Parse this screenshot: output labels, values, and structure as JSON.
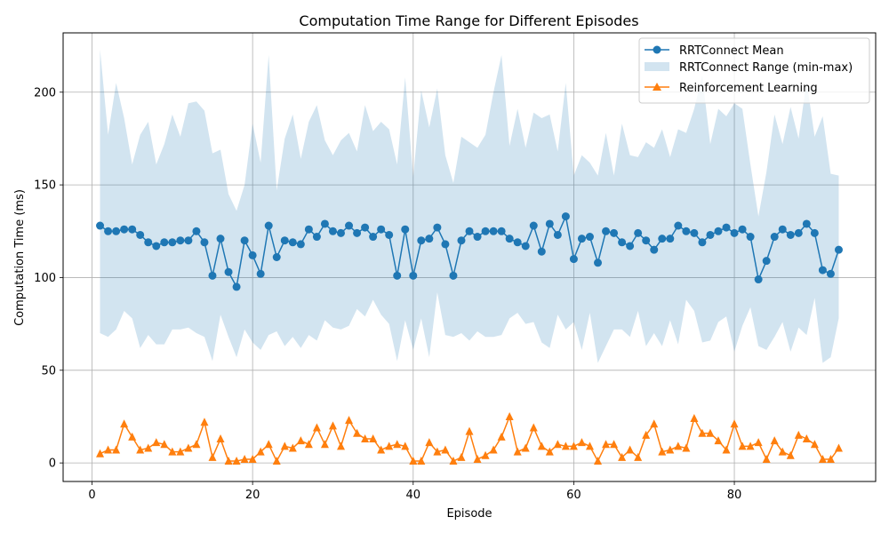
{
  "chart_data": {
    "type": "line",
    "title": "Computation Time Range for Different Episodes",
    "xlabel": "Episode",
    "ylabel": "Computation Time (ms)",
    "xlim": [
      -3.6,
      97.6
    ],
    "ylim": [
      -10,
      232
    ],
    "xticks": [
      0,
      20,
      40,
      60,
      80
    ],
    "yticks": [
      0,
      50,
      100,
      150,
      200
    ],
    "grid": true,
    "legend_position": "top-right",
    "x": [
      1,
      2,
      3,
      4,
      5,
      6,
      7,
      8,
      9,
      10,
      11,
      12,
      13,
      14,
      15,
      16,
      17,
      18,
      19,
      20,
      21,
      22,
      23,
      24,
      25,
      26,
      27,
      28,
      29,
      30,
      31,
      32,
      33,
      34,
      35,
      36,
      37,
      38,
      39,
      40,
      41,
      42,
      43,
      44,
      45,
      46,
      47,
      48,
      49,
      50,
      51,
      52,
      53,
      54,
      55,
      56,
      57,
      58,
      59,
      60,
      61,
      62,
      63,
      64,
      65,
      66,
      67,
      68,
      69,
      70,
      71,
      72,
      73,
      74,
      75,
      76,
      77,
      78,
      79,
      80,
      81,
      82,
      83,
      84,
      85,
      86,
      87,
      88,
      89,
      90,
      91,
      92,
      93
    ],
    "series": [
      {
        "name": "RRTConnect Mean",
        "kind": "line",
        "marker": "circle",
        "color": "#1f77b4",
        "values": [
          128,
          125,
          125,
          126,
          126,
          123,
          119,
          117,
          119,
          119,
          120,
          120,
          125,
          119,
          101,
          121,
          103,
          95,
          120,
          112,
          102,
          128,
          111,
          120,
          119,
          118,
          126,
          122,
          129,
          125,
          124,
          128,
          124,
          127,
          122,
          126,
          123,
          101,
          126,
          101,
          120,
          121,
          127,
          118,
          101,
          120,
          125,
          122,
          125,
          125,
          125,
          121,
          119,
          117,
          128,
          114,
          129,
          123,
          133,
          110,
          121,
          122,
          108,
          125,
          124,
          119,
          117,
          124,
          120,
          115,
          121,
          121,
          128,
          125,
          124,
          119,
          123,
          125,
          127,
          124,
          126,
          122,
          99,
          109,
          122,
          126,
          123,
          124,
          129,
          124,
          104,
          102,
          115
        ]
      },
      {
        "name": "RRTConnect Range (min-max)",
        "kind": "band",
        "color": "#1f77b4",
        "opacity": 0.2,
        "min": [
          70,
          68,
          72,
          82,
          78,
          62,
          69,
          64,
          64,
          72,
          72,
          73,
          70,
          68,
          55,
          80,
          68,
          57,
          72,
          65,
          61,
          69,
          71,
          63,
          68,
          62,
          69,
          66,
          77,
          73,
          72,
          74,
          83,
          79,
          88,
          80,
          75,
          55,
          77,
          61,
          78,
          57,
          92,
          69,
          68,
          70,
          66,
          71,
          68,
          68,
          69,
          78,
          81,
          75,
          76,
          65,
          62,
          80,
          72,
          76,
          61,
          81,
          54,
          63,
          72,
          72,
          68,
          82,
          63,
          70,
          63,
          77,
          64,
          88,
          82,
          65,
          66,
          76,
          79,
          60,
          74,
          84,
          63,
          61,
          68,
          76,
          60,
          73,
          69,
          89,
          54,
          57,
          78
        ],
        "max": [
          223,
          177,
          205,
          186,
          161,
          177,
          184,
          161,
          172,
          188,
          176,
          194,
          195,
          190,
          167,
          169,
          145,
          136,
          150,
          183,
          162,
          220,
          147,
          175,
          188,
          164,
          184,
          193,
          174,
          166,
          174,
          178,
          168,
          193,
          179,
          184,
          180,
          161,
          208,
          154,
          201,
          181,
          202,
          166,
          151,
          176,
          173,
          170,
          177,
          200,
          220,
          171,
          191,
          170,
          189,
          186,
          188,
          168,
          205,
          155,
          166,
          162,
          155,
          178,
          155,
          183,
          166,
          165,
          173,
          170,
          180,
          165,
          180,
          178,
          191,
          209,
          172,
          191,
          187,
          194,
          191,
          161,
          133,
          157,
          188,
          172,
          192,
          175,
          206,
          176,
          187,
          156,
          155
        ]
      },
      {
        "name": "Reinforcement Learning",
        "kind": "line",
        "marker": "triangle",
        "color": "#ff7f0e",
        "values": [
          5,
          7,
          7,
          21,
          14,
          7,
          8,
          11,
          10,
          6,
          6,
          8,
          10,
          22,
          3,
          13,
          1,
          1,
          2,
          2,
          6,
          10,
          1,
          9,
          8,
          12,
          10,
          19,
          10,
          20,
          9,
          23,
          16,
          13,
          13,
          7,
          9,
          10,
          9,
          1,
          1,
          11,
          6,
          7,
          1,
          3,
          17,
          2,
          4,
          7,
          14,
          25,
          6,
          8,
          19,
          9,
          6,
          10,
          9,
          9,
          11,
          9,
          1,
          10,
          10,
          3,
          7,
          3,
          15,
          21,
          6,
          7,
          9,
          8,
          24,
          16,
          16,
          12,
          7,
          21,
          9,
          9,
          11,
          2,
          12,
          6,
          4,
          15,
          13,
          10,
          2,
          2,
          8
        ]
      }
    ]
  }
}
